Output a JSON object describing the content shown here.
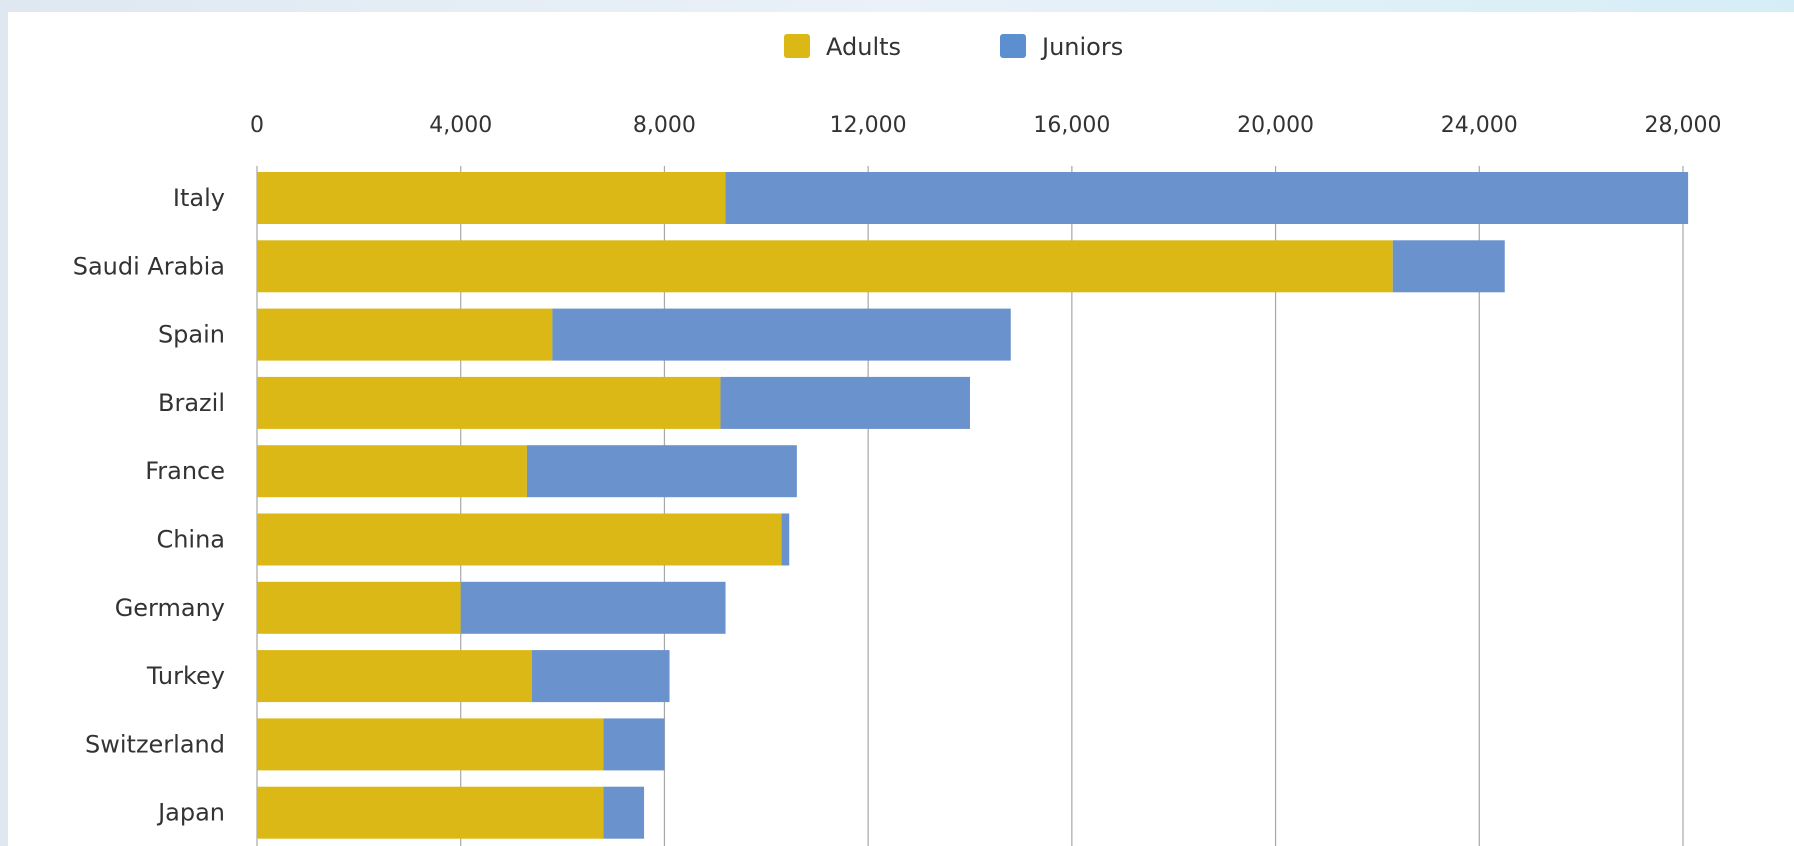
{
  "chart_data": {
    "type": "bar",
    "orientation": "horizontal",
    "stacked": true,
    "categories": [
      "Italy",
      "Saudi Arabia",
      "Spain",
      "Brazil",
      "France",
      "China",
      "Germany",
      "Turkey",
      "Switzerland",
      "Japan"
    ],
    "series": [
      {
        "name": "Adults",
        "color": "#dbb816",
        "values": [
          9200,
          22300,
          5800,
          9100,
          5300,
          10300,
          4000,
          5400,
          6800,
          6800
        ]
      },
      {
        "name": "Juniors",
        "color": "#6a92cc",
        "values": [
          18900,
          2200,
          9000,
          4900,
          5300,
          150,
          5200,
          2700,
          1200,
          800
        ]
      }
    ],
    "legend": {
      "position": "top",
      "items": [
        {
          "label": "Adults",
          "color": "#dbb816"
        },
        {
          "label": "Juniors",
          "color": "#5b8fd0"
        }
      ]
    },
    "xaxis": {
      "position": "top",
      "ticks": [
        0,
        4000,
        8000,
        12000,
        16000,
        20000,
        24000,
        28000
      ],
      "tick_labels": [
        "0",
        "4,000",
        "8,000",
        "12,000",
        "16,000",
        "20,000",
        "24,000",
        "28,000"
      ],
      "range": [
        0,
        28000
      ]
    },
    "grid": "vertical",
    "colors": {
      "grid": "#a8a8a8",
      "text": "#333333"
    }
  }
}
